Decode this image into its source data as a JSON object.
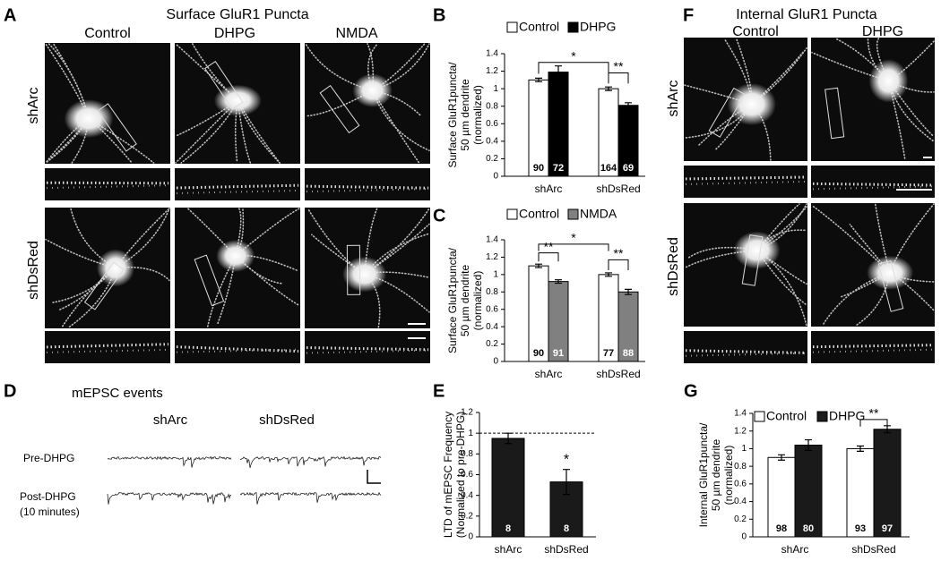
{
  "figure": {
    "A": {
      "letter": "A",
      "title": "Surface GluR1 Puncta",
      "columns": [
        "Control",
        "DHPG",
        "NMDA"
      ],
      "rows": [
        "shArc",
        "shDsRed"
      ]
    },
    "F": {
      "letter": "F",
      "title": "Internal GluR1 Puncta",
      "columns": [
        "Control",
        "DHPG"
      ],
      "rows": [
        "shArc",
        "shDsRed"
      ]
    },
    "D": {
      "letter": "D",
      "title": "mEPSC events",
      "columns": [
        "shArc",
        "shDsRed"
      ],
      "rows": [
        "Pre-DHPG",
        "Post-DHPG"
      ],
      "note": "(10 minutes)"
    }
  },
  "chart_data": [
    {
      "type": "bar",
      "panel": "B",
      "ylabel": [
        "Surface GluR1puncta/",
        "50 µm dendrite",
        "(normalized)"
      ],
      "categories": [
        "shArc",
        "shDsRed"
      ],
      "series": [
        {
          "name": "Control",
          "color": "#ffffff",
          "values": [
            1.1,
            1.0
          ],
          "errors": [
            0.02,
            0.02
          ],
          "n": [
            90,
            164
          ]
        },
        {
          "name": "DHPG",
          "color": "#000000",
          "values": [
            1.19,
            0.81
          ],
          "errors": [
            0.07,
            0.03
          ],
          "n": [
            72,
            69
          ]
        }
      ],
      "ylim": [
        0,
        1.4
      ],
      "yticks": [
        0,
        0.2,
        0.4,
        0.6,
        0.8,
        1,
        1.2,
        1.4
      ],
      "annotations": [
        "*",
        "**"
      ]
    },
    {
      "type": "bar",
      "panel": "C",
      "ylabel": [
        "Surface GluR1puncta/",
        "50 µm dendrite",
        "(normalized)"
      ],
      "categories": [
        "shArc",
        "shDsRed"
      ],
      "series": [
        {
          "name": "Control",
          "color": "#ffffff",
          "values": [
            1.1,
            1.0
          ],
          "errors": [
            0.02,
            0.02
          ],
          "n": [
            90,
            77
          ]
        },
        {
          "name": "NMDA",
          "color": "#808080",
          "values": [
            0.92,
            0.8
          ],
          "errors": [
            0.02,
            0.03
          ],
          "n": [
            91,
            88
          ]
        }
      ],
      "ylim": [
        0,
        1.4
      ],
      "yticks": [
        0,
        0.2,
        0.4,
        0.6,
        0.8,
        1,
        1.2,
        1.4
      ],
      "annotations": [
        "**",
        "*",
        "**"
      ]
    },
    {
      "type": "bar",
      "panel": "E",
      "ylabel": [
        "LTD of mEPSC Frequency",
        "(Normalized to pre-DHPG)"
      ],
      "categories": [
        "shArc",
        "shDsRed"
      ],
      "series": [
        {
          "color": "#1a1a1a",
          "values": [
            0.95,
            0.53
          ],
          "errors": [
            0.05,
            0.12
          ],
          "n": [
            8,
            8
          ]
        }
      ],
      "ylim": [
        0,
        1.2
      ],
      "yticks": [
        0,
        0.2,
        0.4,
        0.6,
        0.8,
        1,
        1.2
      ],
      "hline": 1,
      "annotations": [
        "*"
      ]
    },
    {
      "type": "bar",
      "panel": "G",
      "ylabel": [
        "Internal GluR1puncta/",
        "50 µm dendrite",
        "(normalized)"
      ],
      "categories": [
        "shArc",
        "shDsRed"
      ],
      "series": [
        {
          "name": "Control",
          "color": "#ffffff",
          "values": [
            0.9,
            1.0
          ],
          "errors": [
            0.03,
            0.03
          ],
          "n": [
            98,
            93
          ]
        },
        {
          "name": "DHPG",
          "color": "#1a1a1a",
          "values": [
            1.04,
            1.22
          ],
          "errors": [
            0.06,
            0.04
          ],
          "n": [
            80,
            97
          ]
        }
      ],
      "ylim": [
        0,
        1.4
      ],
      "yticks": [
        0,
        0.2,
        0.4,
        0.6,
        0.8,
        1,
        1.2,
        1.4
      ],
      "annotations": [
        "**"
      ]
    }
  ]
}
